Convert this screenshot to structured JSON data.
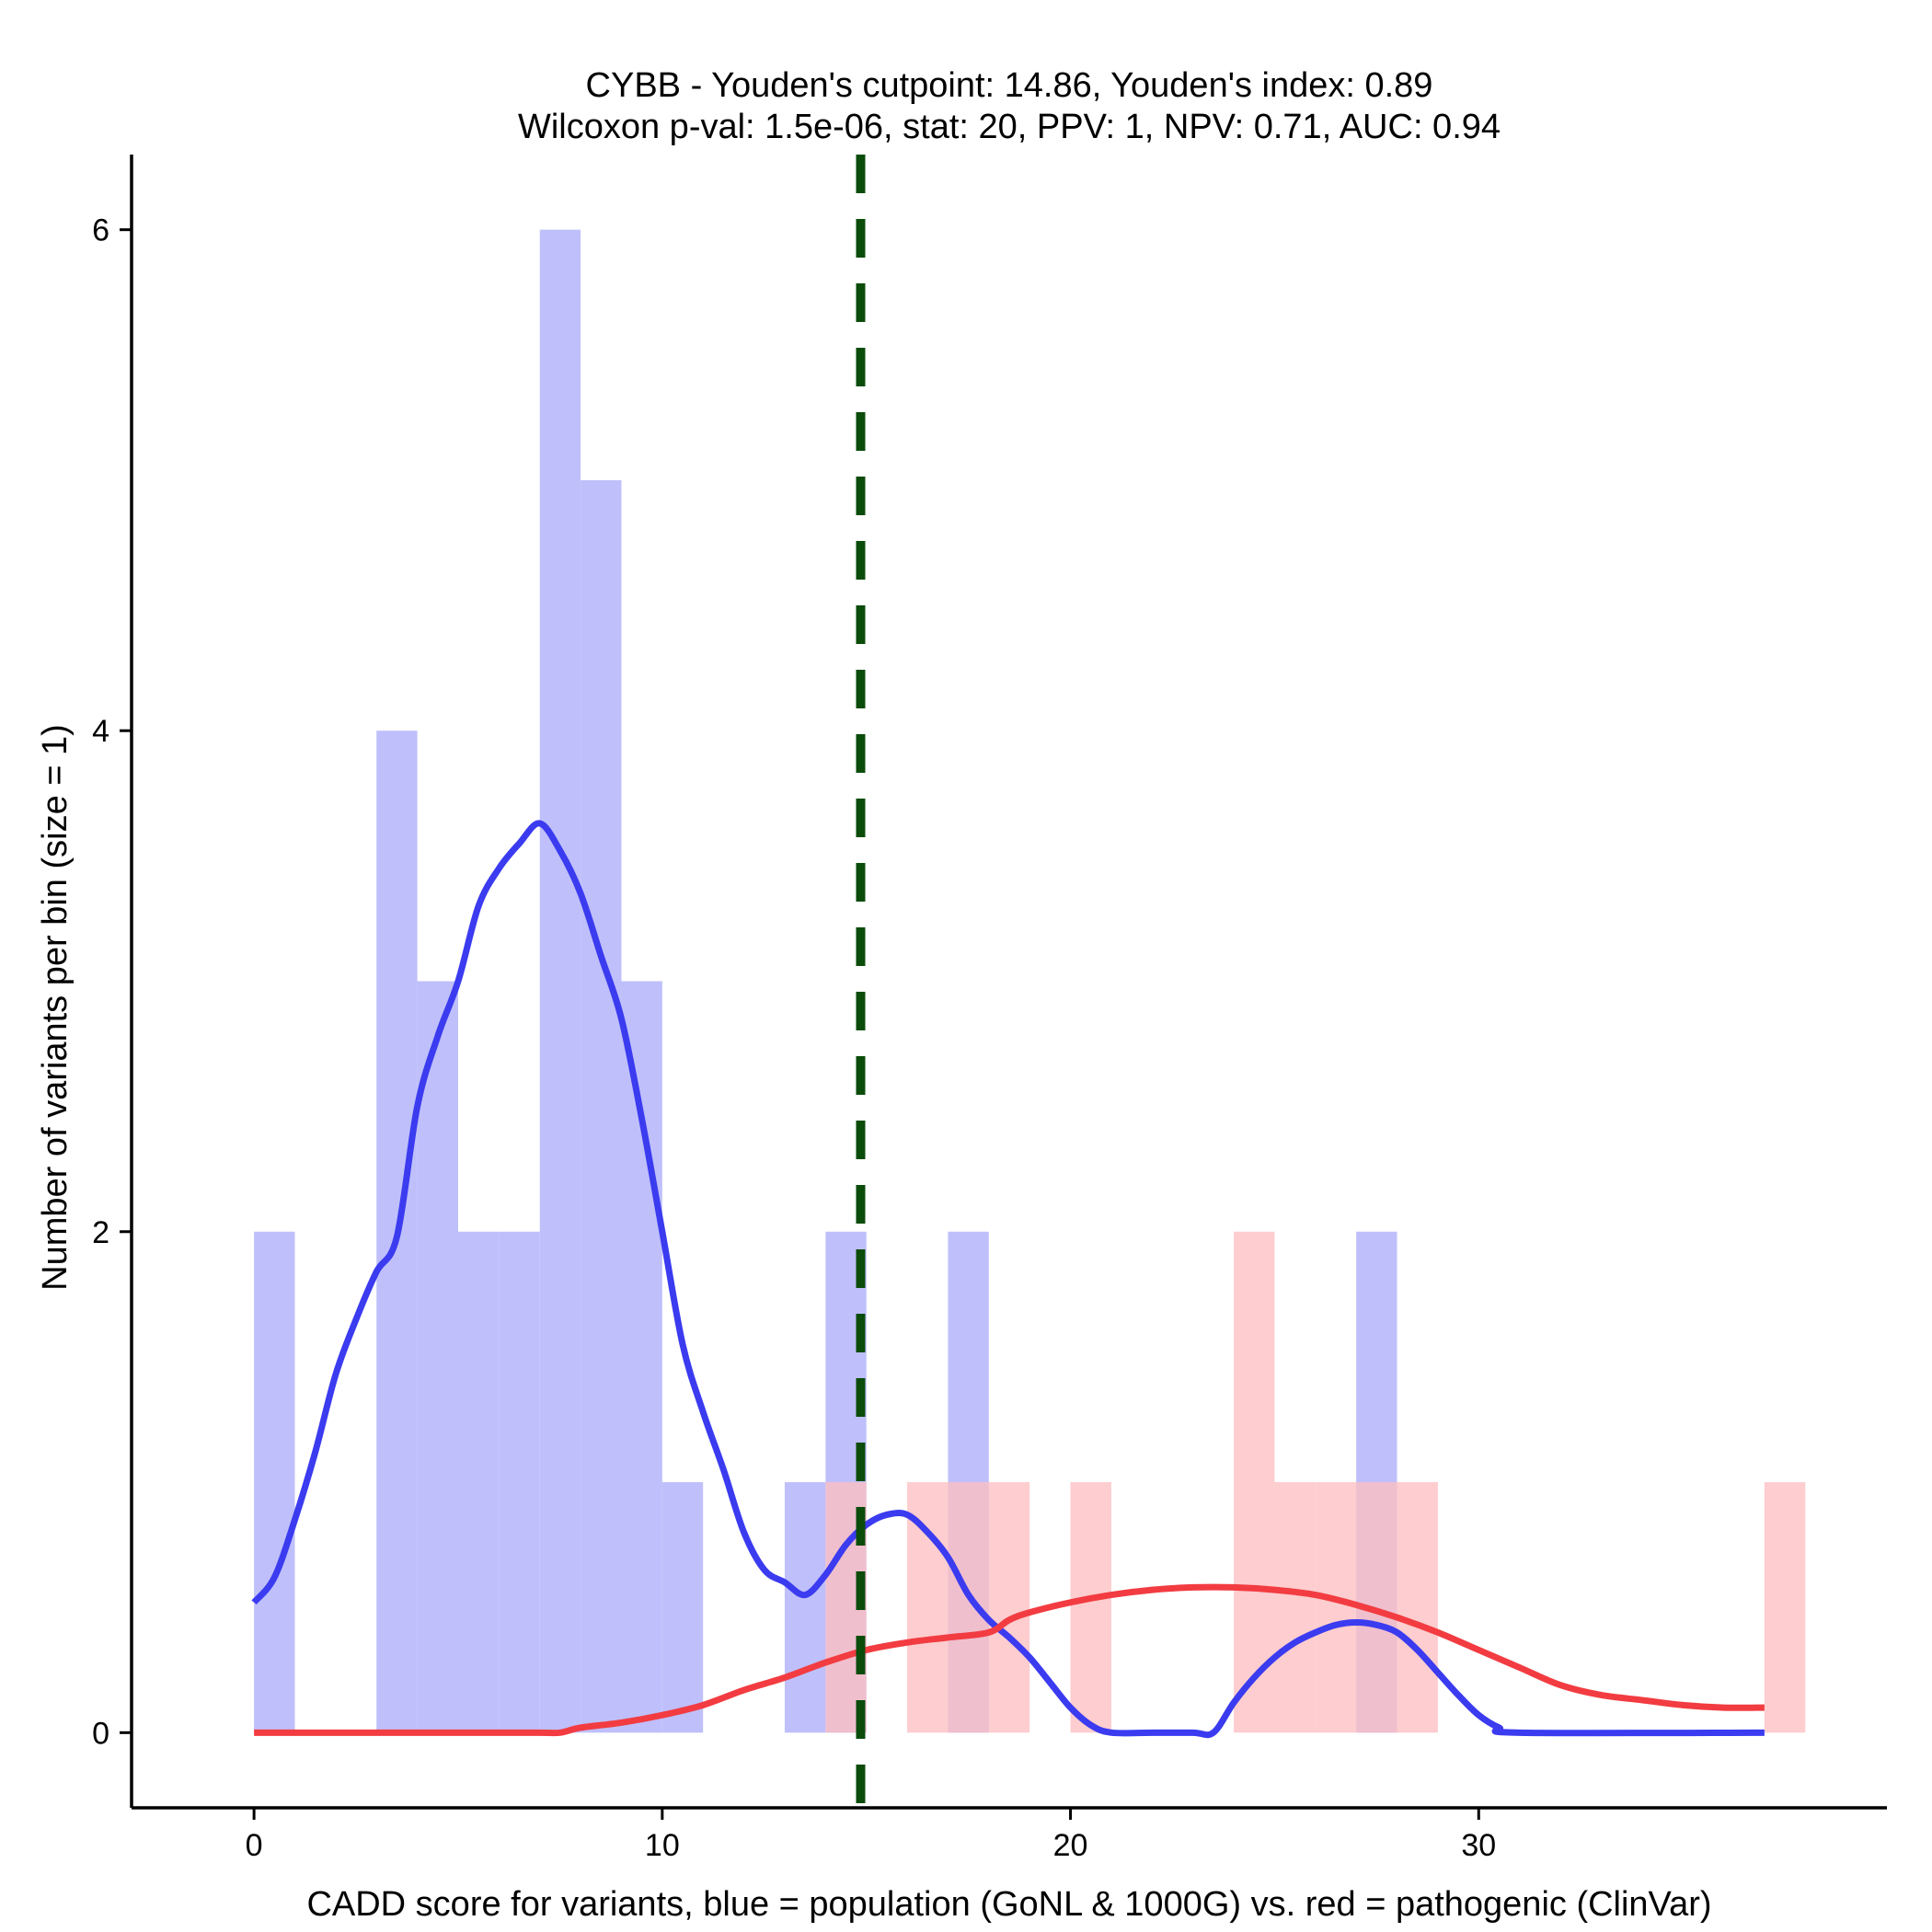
{
  "chart_data": {
    "type": "histogram",
    "title": "CYBB - Youden's cutpoint: 14.86, Youden's index: 0.89",
    "subtitle": "Wilcoxon p-val: 1.5e-06, stat: 20, PPV: 1, NPV: 0.71, AUC: 0.94",
    "xlabel": "CADD score for variants, blue = population (GoNL & 1000G) vs. red = pathogenic (ClinVar)",
    "ylabel": "Number of variants per bin (size = 1)",
    "xlim": [
      -3,
      40
    ],
    "ylim": [
      -0.3,
      6.3
    ],
    "x_ticks": [
      0,
      10,
      20,
      30
    ],
    "y_ticks": [
      0,
      2,
      4,
      6
    ],
    "bin_width": 1,
    "cutpoint": 14.86,
    "series": [
      {
        "name": "population (GoNL & 1000G)",
        "color": "#bfbffb",
        "line_color": "#3b3bf0",
        "bins": [
          [
            0,
            2
          ],
          [
            3,
            4
          ],
          [
            4,
            3
          ],
          [
            5,
            2
          ],
          [
            6,
            2
          ],
          [
            7,
            6
          ],
          [
            8,
            5
          ],
          [
            9,
            3
          ],
          [
            10,
            1
          ],
          [
            13,
            1
          ],
          [
            14,
            2
          ],
          [
            17,
            2
          ],
          [
            27,
            2
          ]
        ],
        "density_curve": [
          [
            0,
            0.52
          ],
          [
            0.5,
            0.62
          ],
          [
            1,
            0.85
          ],
          [
            1.5,
            1.12
          ],
          [
            2,
            1.43
          ],
          [
            2.5,
            1.65
          ],
          [
            3,
            1.84
          ],
          [
            3.5,
            1.98
          ],
          [
            4,
            2.5
          ],
          [
            4.5,
            2.78
          ],
          [
            5,
            3.0
          ],
          [
            5.5,
            3.3
          ],
          [
            6,
            3.45
          ],
          [
            6.5,
            3.55
          ],
          [
            7,
            3.63
          ],
          [
            7.5,
            3.52
          ],
          [
            8,
            3.35
          ],
          [
            8.5,
            3.1
          ],
          [
            9,
            2.85
          ],
          [
            9.5,
            2.45
          ],
          [
            10,
            2.0
          ],
          [
            10.5,
            1.55
          ],
          [
            11,
            1.28
          ],
          [
            11.5,
            1.05
          ],
          [
            12,
            0.8
          ],
          [
            12.5,
            0.65
          ],
          [
            13,
            0.6
          ],
          [
            13.5,
            0.55
          ],
          [
            14,
            0.63
          ],
          [
            14.5,
            0.75
          ],
          [
            15,
            0.83
          ],
          [
            15.5,
            0.87
          ],
          [
            16,
            0.87
          ],
          [
            16.5,
            0.8
          ],
          [
            17,
            0.7
          ],
          [
            17.5,
            0.55
          ],
          [
            18,
            0.45
          ],
          [
            18.5,
            0.38
          ],
          [
            19,
            0.3
          ],
          [
            19.5,
            0.2
          ],
          [
            20,
            0.1
          ],
          [
            20.5,
            0.03
          ],
          [
            21,
            0.0
          ],
          [
            22,
            0.0
          ],
          [
            23,
            0.0
          ],
          [
            23.5,
            0.0
          ],
          [
            24,
            0.12
          ],
          [
            24.5,
            0.22
          ],
          [
            25,
            0.3
          ],
          [
            25.5,
            0.36
          ],
          [
            26,
            0.4
          ],
          [
            26.5,
            0.43
          ],
          [
            27,
            0.44
          ],
          [
            27.5,
            0.43
          ],
          [
            28,
            0.4
          ],
          [
            28.5,
            0.33
          ],
          [
            29,
            0.24
          ],
          [
            29.5,
            0.15
          ],
          [
            30,
            0.07
          ],
          [
            30.5,
            0.02
          ],
          [
            31,
            0.0
          ],
          [
            37,
            0.0
          ]
        ]
      },
      {
        "name": "pathogenic (ClinVar)",
        "color": "#fdbfc1",
        "line_color": "#f23c41",
        "bins": [
          [
            14,
            1
          ],
          [
            16,
            1
          ],
          [
            17,
            1
          ],
          [
            18,
            1
          ],
          [
            20,
            1
          ],
          [
            24,
            2
          ],
          [
            25,
            1
          ],
          [
            26,
            1
          ],
          [
            27,
            1
          ],
          [
            28,
            1
          ],
          [
            37,
            1
          ]
        ],
        "density_curve": [
          [
            0,
            0.0
          ],
          [
            5,
            0.0
          ],
          [
            7,
            0.0
          ],
          [
            7.5,
            0.0
          ],
          [
            8,
            0.02
          ],
          [
            9,
            0.04
          ],
          [
            10,
            0.07
          ],
          [
            11,
            0.11
          ],
          [
            12,
            0.17
          ],
          [
            13,
            0.22
          ],
          [
            14,
            0.28
          ],
          [
            15,
            0.33
          ],
          [
            16,
            0.36
          ],
          [
            17,
            0.38
          ],
          [
            18,
            0.4
          ],
          [
            18.5,
            0.45
          ],
          [
            19,
            0.48
          ],
          [
            20,
            0.52
          ],
          [
            21,
            0.55
          ],
          [
            22,
            0.57
          ],
          [
            23,
            0.58
          ],
          [
            24,
            0.58
          ],
          [
            25,
            0.57
          ],
          [
            26,
            0.55
          ],
          [
            27,
            0.51
          ],
          [
            28,
            0.46
          ],
          [
            29,
            0.4
          ],
          [
            30,
            0.33
          ],
          [
            31,
            0.26
          ],
          [
            32,
            0.19
          ],
          [
            33,
            0.15
          ],
          [
            34,
            0.13
          ],
          [
            35,
            0.11
          ],
          [
            36,
            0.1
          ],
          [
            37,
            0.1
          ]
        ]
      }
    ],
    "cutpoint_color": "#0b4c0b"
  }
}
